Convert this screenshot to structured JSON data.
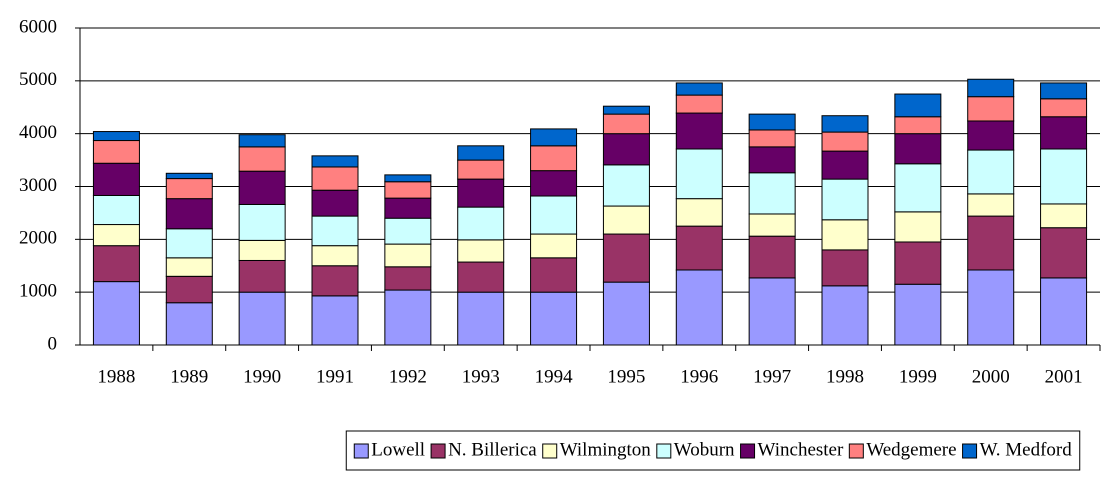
{
  "chart_data": {
    "type": "bar",
    "stacked": true,
    "categories": [
      "1988",
      "1989",
      "1990",
      "1991",
      "1992",
      "1993",
      "1994",
      "1995",
      "1996",
      "1997",
      "1998",
      "1999",
      "2000",
      "2001"
    ],
    "series": [
      {
        "name": "Lowell",
        "color": "#9999ff",
        "values": [
          1200,
          800,
          1000,
          930,
          1040,
          1000,
          1000,
          1190,
          1420,
          1270,
          1120,
          1150,
          1420,
          1270
        ]
      },
      {
        "name": "N. Billerica",
        "color": "#993366",
        "values": [
          680,
          500,
          600,
          570,
          440,
          570,
          650,
          910,
          830,
          790,
          680,
          800,
          1020,
          950
        ]
      },
      {
        "name": "Wilmington",
        "color": "#ffffcc",
        "values": [
          400,
          350,
          380,
          380,
          430,
          420,
          450,
          530,
          520,
          420,
          570,
          570,
          420,
          450
        ]
      },
      {
        "name": "Woburn",
        "color": "#ccffff",
        "values": [
          550,
          550,
          680,
          560,
          490,
          620,
          720,
          780,
          940,
          780,
          770,
          910,
          830,
          1040
        ]
      },
      {
        "name": "Winchester",
        "color": "#660066",
        "values": [
          610,
          570,
          630,
          490,
          380,
          530,
          480,
          590,
          680,
          490,
          530,
          570,
          550,
          610
        ]
      },
      {
        "name": "Wedgemere",
        "color": "#ff8080",
        "values": [
          430,
          380,
          460,
          440,
          310,
          360,
          470,
          370,
          340,
          320,
          360,
          320,
          460,
          340
        ]
      },
      {
        "name": "W. Medford",
        "color": "#0066cc",
        "values": [
          170,
          100,
          230,
          210,
          130,
          270,
          320,
          150,
          230,
          300,
          310,
          430,
          330,
          300
        ]
      }
    ],
    "ylim": [
      0,
      6000
    ],
    "yticks": [
      0,
      1000,
      2000,
      3000,
      4000,
      5000,
      6000
    ],
    "grid": true,
    "legend": "bottom"
  }
}
